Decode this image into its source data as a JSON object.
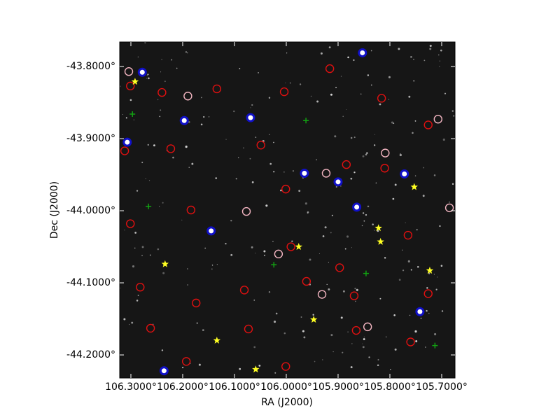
{
  "chart_data": {
    "type": "scatter",
    "xlabel": "RA (J2000)",
    "ylabel": "Dec (J2000)",
    "xlim": [
      106.3216,
      105.6743
    ],
    "ylim": [
      -44.232,
      -43.766
    ],
    "xticks": [
      {
        "value": 106.3,
        "label": "106.3000°"
      },
      {
        "value": 106.2,
        "label": "106.2000°"
      },
      {
        "value": 106.1,
        "label": "106.1000°"
      },
      {
        "value": 106.0,
        "label": "106.0000°"
      },
      {
        "value": 105.9,
        "label": "105.9000°"
      },
      {
        "value": 105.8,
        "label": "105.8000°"
      },
      {
        "value": 105.7,
        "label": "105.7000°"
      }
    ],
    "yticks": [
      {
        "value": -43.8,
        "label": "-43.8000°"
      },
      {
        "value": -43.9,
        "label": "-43.9000°"
      },
      {
        "value": -44.0,
        "label": "-44.0000°"
      },
      {
        "value": -44.1,
        "label": "-44.1000°"
      },
      {
        "value": -44.2,
        "label": "-44.2000°"
      }
    ],
    "background": "#161616",
    "series": [
      {
        "marker": "circle",
        "color": "#e01010",
        "x": [
          106.301,
          106.24,
          106.134,
          106.004,
          105.916,
          105.816,
          105.726,
          106.312,
          106.223,
          106.049,
          106.001,
          105.884,
          105.81,
          106.301,
          106.184,
          105.991,
          105.897,
          105.765,
          106.282,
          106.174,
          106.081,
          105.961,
          105.869,
          105.726,
          106.262,
          106.073,
          105.865,
          105.76,
          106.001,
          106.193
        ],
        "y": [
          -43.827,
          -43.836,
          -43.831,
          -43.835,
          -43.803,
          -43.844,
          -43.881,
          -43.917,
          -43.914,
          -43.909,
          -43.97,
          -43.936,
          -43.941,
          -44.018,
          -43.999,
          -44.05,
          -44.079,
          -44.034,
          -44.106,
          -44.128,
          -44.11,
          -44.098,
          -44.118,
          -44.115,
          -44.163,
          -44.164,
          -44.166,
          -44.182,
          -44.216,
          -44.209
        ]
      },
      {
        "marker": "circle",
        "color": "#f4b6c2",
        "x": [
          106.304,
          106.19,
          106.077,
          105.809,
          106.015,
          105.931,
          105.843,
          105.707,
          105.923,
          105.685
        ],
        "y": [
          -43.807,
          -43.841,
          -44.001,
          -43.92,
          -44.06,
          -44.116,
          -44.161,
          -43.873,
          -43.948,
          -43.996
        ]
      },
      {
        "marker": "dot-circle",
        "color": "#1010c8",
        "x": [
          106.278,
          106.197,
          106.069,
          105.853,
          105.9,
          105.864,
          106.145,
          105.772,
          105.742,
          106.236,
          105.965,
          106.307
        ],
        "y": [
          -43.808,
          -43.875,
          -43.871,
          -43.781,
          -43.96,
          -43.995,
          -44.028,
          -43.949,
          -44.14,
          -44.222,
          -43.948,
          -43.905
        ]
      },
      {
        "marker": "plus",
        "color": "#12a012",
        "x": [
          106.297,
          105.962,
          106.266,
          106.024,
          105.713,
          105.846
        ],
        "y": [
          -43.866,
          -43.875,
          -43.994,
          -44.075,
          -44.187,
          -44.087
        ]
      },
      {
        "marker": "star",
        "color": "#ffff22",
        "x": [
          106.292,
          105.753,
          105.822,
          105.818,
          105.976,
          106.234,
          105.723,
          105.947,
          106.134,
          106.059
        ],
        "y": [
          -43.821,
          -43.967,
          -44.024,
          -44.043,
          -44.05,
          -44.074,
          -44.083,
          -44.151,
          -44.18,
          -44.22
        ]
      }
    ]
  }
}
